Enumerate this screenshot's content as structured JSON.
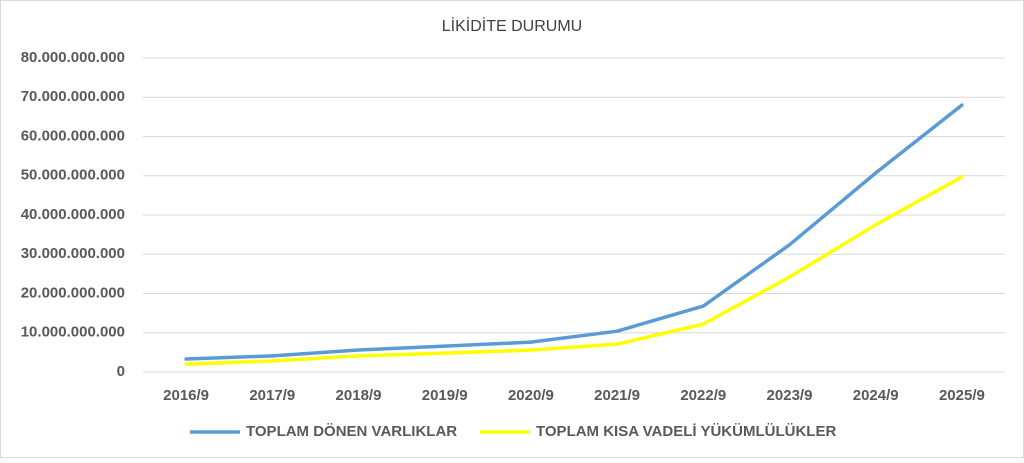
{
  "chart_data": {
    "type": "line",
    "title": "LİKİDİTE DURUMU",
    "categories": [
      "2016/9",
      "2017/9",
      "2018/9",
      "2019/9",
      "2020/9",
      "2021/9",
      "2022/9",
      "2023/9",
      "2024/9",
      "2025/9"
    ],
    "series": [
      {
        "name": "TOPLAM DÖNEN VARLIKLAR",
        "color": "#5b9bd5",
        "values": [
          3300000000,
          4100000000,
          5600000000,
          6600000000,
          7600000000,
          10400000000,
          16800000000,
          32400000000,
          50700000000,
          68000000000
        ]
      },
      {
        "name": "TOPLAM KISA VADELİ YÜKÜMLÜLÜKLER",
        "color": "#ffff00",
        "values": [
          2000000000,
          2800000000,
          4100000000,
          4800000000,
          5600000000,
          7100000000,
          12200000000,
          24200000000,
          37500000000,
          49700000000
        ]
      }
    ],
    "ylim": [
      0,
      80000000000
    ],
    "yticks": [
      0,
      {
        "value": 10000000000,
        "label": "10.000.000.000"
      },
      {
        "value": 20000000000,
        "label": "20.000.000.000"
      },
      {
        "value": 30000000000,
        "label": "30.000.000.000"
      },
      {
        "value": 40000000000,
        "label": "40.000.000.000"
      },
      {
        "value": 50000000000,
        "label": "50.000.000.000"
      },
      {
        "value": 60000000000,
        "label": "60.000.000.000"
      },
      {
        "value": 70000000000,
        "label": "70.000.000.000"
      },
      {
        "value": 80000000000,
        "label": "80.000.000.000"
      }
    ],
    "grid": true,
    "legend": "bottom"
  }
}
